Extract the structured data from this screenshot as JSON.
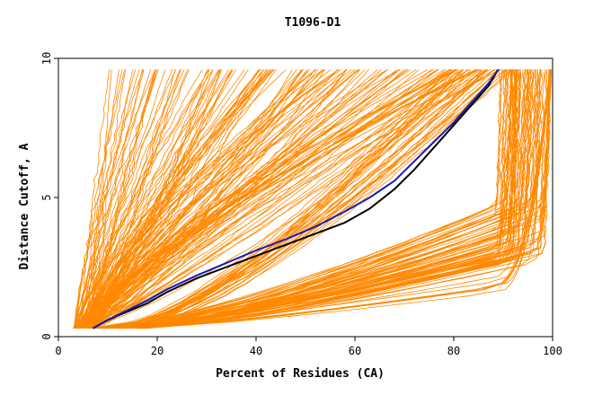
{
  "chart_data": {
    "type": "line",
    "title": "T1096-D1",
    "xlabel": "Percent of Residues (CA)",
    "ylabel": "Distance Cutoff, A",
    "xlim": [
      0,
      100
    ],
    "ylim": [
      0,
      10
    ],
    "x_ticks": [
      "0",
      "20",
      "40",
      "60",
      "80",
      "100"
    ],
    "y_ticks": [
      "0",
      "5",
      "10"
    ],
    "grid": false,
    "legend": "none",
    "colors": {
      "background_models": "#ff8800",
      "highlight_black": "#000000",
      "highlight_blue": "#1a1ab0"
    },
    "series": [
      {
        "color": "#000000",
        "x": [
          7,
          10,
          14,
          18,
          22,
          28,
          34,
          40,
          46,
          52,
          58,
          63,
          68,
          72,
          76,
          80,
          84,
          87,
          89
        ],
        "y": [
          0.3,
          0.6,
          0.9,
          1.2,
          1.6,
          2.1,
          2.5,
          2.9,
          3.3,
          3.7,
          4.1,
          4.6,
          5.3,
          6.0,
          6.8,
          7.6,
          8.4,
          9.0,
          9.6
        ]
      },
      {
        "color": "#1a1ab0",
        "x": [
          7,
          10,
          14,
          18,
          22,
          28,
          34,
          40,
          46,
          52,
          58,
          63,
          68,
          72,
          76,
          80,
          84,
          87,
          89
        ],
        "y": [
          0.3,
          0.6,
          0.95,
          1.3,
          1.7,
          2.2,
          2.65,
          3.1,
          3.5,
          3.95,
          4.5,
          5.0,
          5.6,
          6.3,
          7.0,
          7.7,
          8.5,
          9.1,
          9.6
        ]
      }
    ]
  }
}
